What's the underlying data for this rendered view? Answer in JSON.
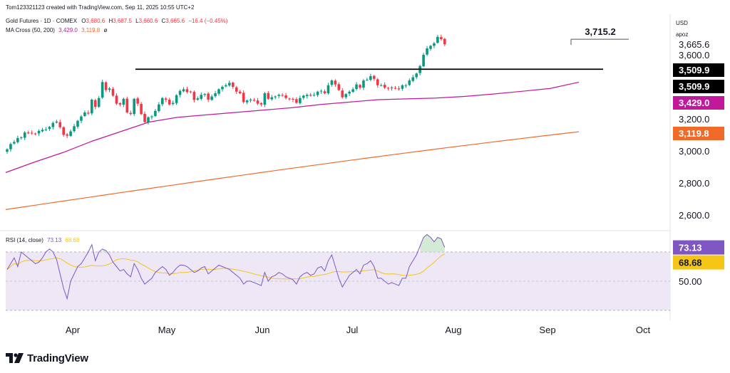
{
  "header": {
    "credit": "Tom123321123 created with TradingView.com, Sep 11, 2025 10:55 UTC+2",
    "symbol_line": "Gold Futures · 1D · COMEX",
    "ohlc": {
      "o_label": "O",
      "o": "3,680.6",
      "h_label": "H",
      "h": "3,687.5",
      "l_label": "L",
      "l": "3,660.6",
      "c_label": "C",
      "c": "3,665.6",
      "change": "−16.4 (−0.45%)"
    },
    "ma_line": {
      "label": "MA Cross (50, 200)",
      "ma50": "3,429.0",
      "ma200": "3,119.8",
      "tail": "ø"
    },
    "rsi_line": {
      "label": "RSI (14, close)",
      "rsi": "73.13",
      "sma": "68.68"
    }
  },
  "scale": {
    "currency": "USD",
    "unit_label": "apoz"
  },
  "footer": {
    "brand": "TradingView"
  },
  "colors": {
    "up": "#089981",
    "down": "#f23645",
    "ma50": "#c2189b",
    "ma200": "#f06a2a",
    "rsi": "#7e57c2",
    "rsi_sma": "#f5c518",
    "rsi_band": "#ede7f6"
  },
  "chart_data": [
    {
      "type": "candlestick",
      "title": "Gold Futures · 1D · COMEX",
      "x_unit": "date (2025)",
      "ylim": [
        2480,
        3760
      ],
      "y_ticks": [
        "2,600.0",
        "2,800.0",
        "3,000.0",
        "3,200.0",
        "3,600.0",
        "3,665.6"
      ],
      "x_ticks": [
        "Apr",
        "May",
        "Jun",
        "Jul",
        "Aug",
        "Sep",
        "Oct"
      ],
      "price_labels": [
        {
          "text": "3,715.2",
          "value": 3715.2,
          "style": "annotation"
        },
        {
          "text": "3,509.9",
          "value": 3509.9,
          "style": "black"
        },
        {
          "text": "3,509.9",
          "value": 3509.9,
          "style": "black"
        },
        {
          "text": "3,429.0",
          "value": 3429.0,
          "style": "ma50"
        },
        {
          "text": "3,119.8",
          "value": 3119.8,
          "style": "ma200"
        }
      ],
      "horizontal_lines": [
        {
          "name": "resistance",
          "value": 3509.9,
          "from": "2025-04-22",
          "to": "2025-09-23"
        },
        {
          "name": "recent-high",
          "value": 3715.2,
          "from": "2025-09-09",
          "to": "2025-09-23"
        }
      ],
      "close_approx": [
        3010,
        3043,
        3056,
        3080,
        3085,
        3115,
        3110,
        3110,
        3108,
        3125,
        3132,
        3134,
        3150,
        3175,
        3183,
        3148,
        3100,
        3095,
        3122,
        3154,
        3188,
        3215,
        3240,
        3233,
        3320,
        3275,
        3330,
        3430,
        3380,
        3390,
        3345,
        3295,
        3290,
        3325,
        3240,
        3230,
        3325,
        3295,
        3230,
        3180,
        3210,
        3215,
        3250,
        3290,
        3330,
        3320,
        3290,
        3300,
        3348,
        3375,
        3385,
        3368,
        3370,
        3318,
        3328,
        3350,
        3355,
        3320,
        3340,
        3360,
        3385,
        3400,
        3410,
        3425,
        3400,
        3370,
        3360,
        3305,
        3315,
        3320,
        3315,
        3295,
        3290,
        3360,
        3325,
        3335,
        3340,
        3350,
        3345,
        3330,
        3325,
        3320,
        3300,
        3330,
        3345,
        3350,
        3345,
        3350,
        3370,
        3375,
        3360,
        3410,
        3440,
        3415,
        3380,
        3335,
        3355,
        3370,
        3385,
        3415,
        3395,
        3440,
        3445,
        3467,
        3450,
        3410,
        3410,
        3395,
        3390,
        3396,
        3390,
        3385,
        3410,
        3410,
        3440,
        3460,
        3483,
        3530,
        3600,
        3640,
        3656,
        3672,
        3712,
        3698,
        3665.6
      ],
      "ma50_approx": {
        "start": 2865,
        "end": 3429.0
      },
      "ma200_approx": {
        "start": 2634,
        "end": 3119.8
      }
    },
    {
      "type": "line",
      "title": "RSI (14, close)",
      "ylim": [
        18,
        100
      ],
      "y_ticks": [
        "50.00"
      ],
      "band": [
        30,
        70
      ],
      "series": [
        {
          "name": "RSI",
          "last": 73.13
        },
        {
          "name": "SMA",
          "last": 68.68
        }
      ],
      "rsi_approx": [
        58,
        62,
        66,
        60,
        70,
        68,
        66,
        64,
        62,
        63,
        66,
        70,
        72,
        70,
        65,
        55,
        45,
        38,
        50,
        55,
        60,
        62,
        66,
        70,
        75,
        64,
        70,
        72,
        71,
        68,
        63,
        60,
        57,
        58,
        55,
        53,
        62,
        58,
        52,
        48,
        50,
        52,
        56,
        58,
        60,
        58,
        54,
        56,
        59,
        61,
        61,
        60,
        58,
        56,
        57,
        59,
        60,
        55,
        57,
        59,
        61,
        60,
        59,
        58,
        56,
        54,
        52,
        48,
        50,
        50,
        49,
        48,
        47,
        56,
        50,
        53,
        54,
        56,
        55,
        53,
        52,
        51,
        48,
        53,
        55,
        56,
        54,
        55,
        59,
        60,
        57,
        64,
        68,
        60,
        52,
        46,
        50,
        54,
        56,
        58,
        55,
        61,
        62,
        64,
        60,
        52,
        52,
        50,
        48,
        49,
        48,
        47,
        52,
        52,
        60,
        64,
        68,
        74,
        80,
        82,
        80,
        77,
        80,
        79,
        73.13
      ],
      "sma_approx": {
        "start": 62,
        "end": 68.68
      }
    }
  ]
}
